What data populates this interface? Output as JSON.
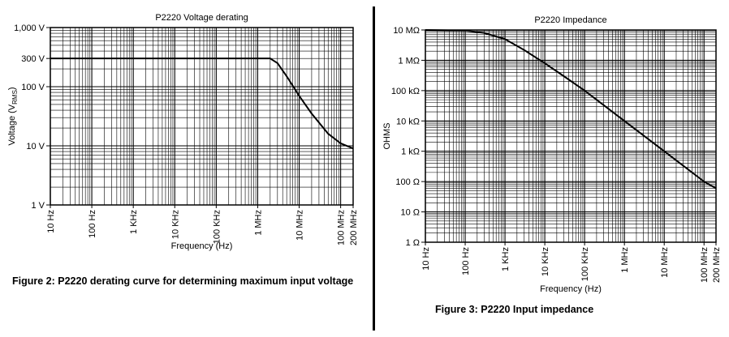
{
  "captions": {
    "fig2": "Figure 2: P2220 derating curve for determining maximum input voltage",
    "fig3": "Figure 3: P2220 Input impedance"
  },
  "chart_data": [
    {
      "type": "line",
      "title": "P2220 Voltage derating",
      "xlabel": "Frequency (Hz)",
      "ylabel": "Voltage (V",
      "ylabel_sub": "RMS",
      "ylabel_end": ")",
      "x_scale": "log",
      "y_scale": "log",
      "xlim": [
        10,
        200000000
      ],
      "ylim": [
        1,
        1000
      ],
      "grid": true,
      "x_ticks": [
        {
          "value": 10,
          "label": "10 Hz"
        },
        {
          "value": 100,
          "label": "100 Hz"
        },
        {
          "value": 1000,
          "label": "1 KHz"
        },
        {
          "value": 10000,
          "label": "10 KHz"
        },
        {
          "value": 100000,
          "label": "100 KHz"
        },
        {
          "value": 1000000,
          "label": "1 MHz"
        },
        {
          "value": 10000000,
          "label": "10 MHz"
        },
        {
          "value": 100000000,
          "label": "100 MHz"
        },
        {
          "value": 200000000,
          "label": "200 MHz"
        }
      ],
      "y_ticks": [
        {
          "value": 1,
          "label": "1 V"
        },
        {
          "value": 10,
          "label": "10 V"
        },
        {
          "value": 100,
          "label": "100 V"
        },
        {
          "value": 300,
          "label": "300 V"
        },
        {
          "value": 1000,
          "label": "1,000 V"
        }
      ],
      "series": [
        {
          "x": [
            10,
            1000000,
            2000000,
            3000000,
            5000000,
            10000000,
            20000000,
            50000000,
            100000000,
            200000000
          ],
          "y": [
            300,
            300,
            300,
            250,
            150,
            70,
            35,
            16,
            11,
            9
          ]
        }
      ]
    },
    {
      "type": "line",
      "title": "P2220 Impedance",
      "xlabel": "Frequency (Hz)",
      "ylabel": "OHMS",
      "x_scale": "log",
      "y_scale": "log",
      "xlim": [
        10,
        200000000
      ],
      "ylim": [
        1,
        10000000
      ],
      "grid": true,
      "x_ticks": [
        {
          "value": 10,
          "label": "10 Hz"
        },
        {
          "value": 100,
          "label": "100 Hz"
        },
        {
          "value": 1000,
          "label": "1 KHz"
        },
        {
          "value": 10000,
          "label": "10 KHz"
        },
        {
          "value": 100000,
          "label": "100 KHz"
        },
        {
          "value": 1000000,
          "label": "1 MHz"
        },
        {
          "value": 10000000,
          "label": "10 MHz"
        },
        {
          "value": 100000000,
          "label": "100 MHz"
        },
        {
          "value": 200000000,
          "label": "200 MHz"
        }
      ],
      "y_ticks": [
        {
          "value": 1,
          "label": "1 Ω"
        },
        {
          "value": 10,
          "label": "10 Ω"
        },
        {
          "value": 100,
          "label": "100 Ω"
        },
        {
          "value": 1000,
          "label": "1 kΩ"
        },
        {
          "value": 10000,
          "label": "10 kΩ"
        },
        {
          "value": 100000,
          "label": "100 kΩ"
        },
        {
          "value": 1000000,
          "label": "1 MΩ"
        },
        {
          "value": 10000000,
          "label": "10 MΩ"
        }
      ],
      "series": [
        {
          "x": [
            10,
            100,
            300,
            1000,
            3000,
            10000,
            30000,
            100000,
            1000000,
            10000000,
            100000000,
            200000000
          ],
          "y": [
            10000000,
            9500000,
            8000000,
            5000000,
            2200000,
            800000,
            300000,
            100000,
            10000,
            1000,
            100,
            60
          ]
        }
      ]
    }
  ]
}
